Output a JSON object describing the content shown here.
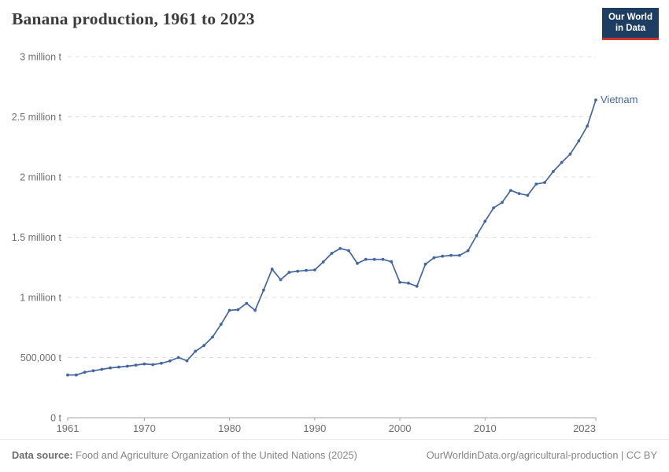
{
  "header": {
    "title": "Banana production, 1961 to 2023",
    "logo": {
      "line1": "Our World",
      "line2": "in Data"
    }
  },
  "footer": {
    "source_label": "Data source:",
    "source_text": " Food and Agriculture Organization of the United Nations (2025)",
    "credit": "OurWorldinData.org/agricultural-production | CC BY"
  },
  "colors": {
    "line": "#4266a3",
    "grid": "#dcdcdc",
    "axis": "#a3a3a3",
    "tick_text": "#6e6e6e",
    "logo_bg": "#1d3d63",
    "logo_red": "#d0342c"
  },
  "chart_data": {
    "type": "line",
    "title": "Banana production, 1961 to 2023",
    "xlabel": "",
    "ylabel": "",
    "xlim": [
      1961,
      2023
    ],
    "ylim": [
      0,
      3000000
    ],
    "grid": "horizontal-dashed",
    "legend_position": "end-of-line",
    "end_label": "Vietnam",
    "xticks": [
      1961,
      1970,
      1980,
      1990,
      2000,
      2010,
      2023
    ],
    "yticks": [
      {
        "value": 0,
        "label": "0 t"
      },
      {
        "value": 500000,
        "label": "500,000 t"
      },
      {
        "value": 1000000,
        "label": "1 million t"
      },
      {
        "value": 1500000,
        "label": "1.5 million t"
      },
      {
        "value": 2000000,
        "label": "2 million t"
      },
      {
        "value": 2500000,
        "label": "2.5 million t"
      },
      {
        "value": 3000000,
        "label": "3 million t"
      }
    ],
    "series": [
      {
        "name": "Vietnam",
        "color": "#4266a3",
        "x_start": 1961,
        "x_step": 1,
        "values": [
          355000,
          355000,
          378000,
          390000,
          402000,
          414000,
          421000,
          428000,
          437000,
          447000,
          441000,
          452000,
          472000,
          500000,
          473000,
          552000,
          600000,
          670000,
          776000,
          892000,
          898000,
          950000,
          892000,
          1060000,
          1234000,
          1147000,
          1208000,
          1217000,
          1224000,
          1228000,
          1294000,
          1366000,
          1406000,
          1388000,
          1282000,
          1316000,
          1316000,
          1316000,
          1296000,
          1125000,
          1118000,
          1092000,
          1276000,
          1329000,
          1342000,
          1349000,
          1349000,
          1388000,
          1513000,
          1632000,
          1743000,
          1789000,
          1888000,
          1862000,
          1848000,
          1941000,
          1954000,
          2046000,
          2121000,
          2191000,
          2300000,
          2423000,
          2640000
        ]
      }
    ]
  }
}
